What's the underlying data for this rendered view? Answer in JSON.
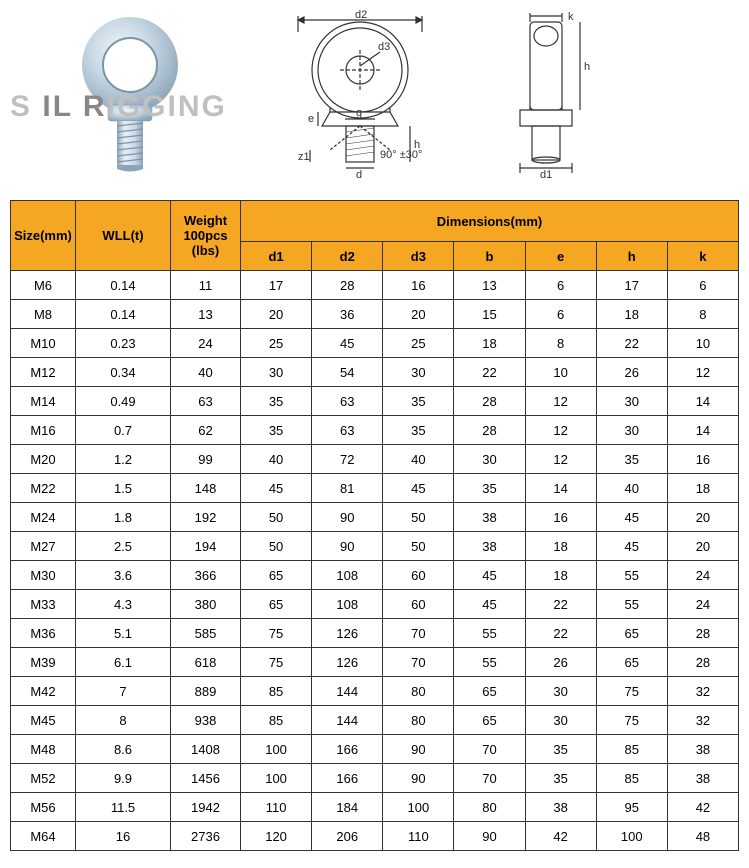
{
  "watermark": "S IL RIGGING",
  "diagram_labels": {
    "d2": "d2",
    "d3": "d3",
    "g": "g",
    "e": "e",
    "h": "h",
    "d": "d",
    "z1": "z1",
    "angle": "90° ±30°",
    "k": "k",
    "d1": "d1"
  },
  "table": {
    "header": {
      "size": "Size(mm)",
      "wll": "WLL(t)",
      "weight": "Weight 100pcs (lbs)",
      "dimensions": "Dimensions(mm)",
      "dim_cols": [
        "d1",
        "d2",
        "d3",
        "b",
        "e",
        "h",
        "k"
      ]
    },
    "rows": [
      [
        "M6",
        "0.14",
        "11",
        "17",
        "28",
        "16",
        "13",
        "6",
        "17",
        "6"
      ],
      [
        "M8",
        "0.14",
        "13",
        "20",
        "36",
        "20",
        "15",
        "6",
        "18",
        "8"
      ],
      [
        "M10",
        "0.23",
        "24",
        "25",
        "45",
        "25",
        "18",
        "8",
        "22",
        "10"
      ],
      [
        "M12",
        "0.34",
        "40",
        "30",
        "54",
        "30",
        "22",
        "10",
        "26",
        "12"
      ],
      [
        "M14",
        "0.49",
        "63",
        "35",
        "63",
        "35",
        "28",
        "12",
        "30",
        "14"
      ],
      [
        "M16",
        "0.7",
        "62",
        "35",
        "63",
        "35",
        "28",
        "12",
        "30",
        "14"
      ],
      [
        "M20",
        "1.2",
        "99",
        "40",
        "72",
        "40",
        "30",
        "12",
        "35",
        "16"
      ],
      [
        "M22",
        "1.5",
        "148",
        "45",
        "81",
        "45",
        "35",
        "14",
        "40",
        "18"
      ],
      [
        "M24",
        "1.8",
        "192",
        "50",
        "90",
        "50",
        "38",
        "16",
        "45",
        "20"
      ],
      [
        "M27",
        "2.5",
        "194",
        "50",
        "90",
        "50",
        "38",
        "18",
        "45",
        "20"
      ],
      [
        "M30",
        "3.6",
        "366",
        "65",
        "108",
        "60",
        "45",
        "18",
        "55",
        "24"
      ],
      [
        "M33",
        "4.3",
        "380",
        "65",
        "108",
        "60",
        "45",
        "22",
        "55",
        "24"
      ],
      [
        "M36",
        "5.1",
        "585",
        "75",
        "126",
        "70",
        "55",
        "22",
        "65",
        "28"
      ],
      [
        "M39",
        "6.1",
        "618",
        "75",
        "126",
        "70",
        "55",
        "26",
        "65",
        "28"
      ],
      [
        "M42",
        "7",
        "889",
        "85",
        "144",
        "80",
        "65",
        "30",
        "75",
        "32"
      ],
      [
        "M45",
        "8",
        "938",
        "85",
        "144",
        "80",
        "65",
        "30",
        "75",
        "32"
      ],
      [
        "M48",
        "8.6",
        "1408",
        "100",
        "166",
        "90",
        "70",
        "35",
        "85",
        "38"
      ],
      [
        "M52",
        "9.9",
        "1456",
        "100",
        "166",
        "90",
        "70",
        "35",
        "85",
        "38"
      ],
      [
        "M56",
        "11.5",
        "1942",
        "110",
        "184",
        "100",
        "80",
        "38",
        "95",
        "42"
      ],
      [
        "M64",
        "16",
        "2736",
        "120",
        "206",
        "110",
        "90",
        "42",
        "100",
        "48"
      ]
    ]
  },
  "colors": {
    "header_bg": "#f5a623",
    "border": "#333333",
    "text": "#000000",
    "bg": "#ffffff",
    "watermark": "#c0c0c0",
    "steel1": "#d8e4ec",
    "steel2": "#a8bccb",
    "steel3": "#e8f0f5"
  }
}
